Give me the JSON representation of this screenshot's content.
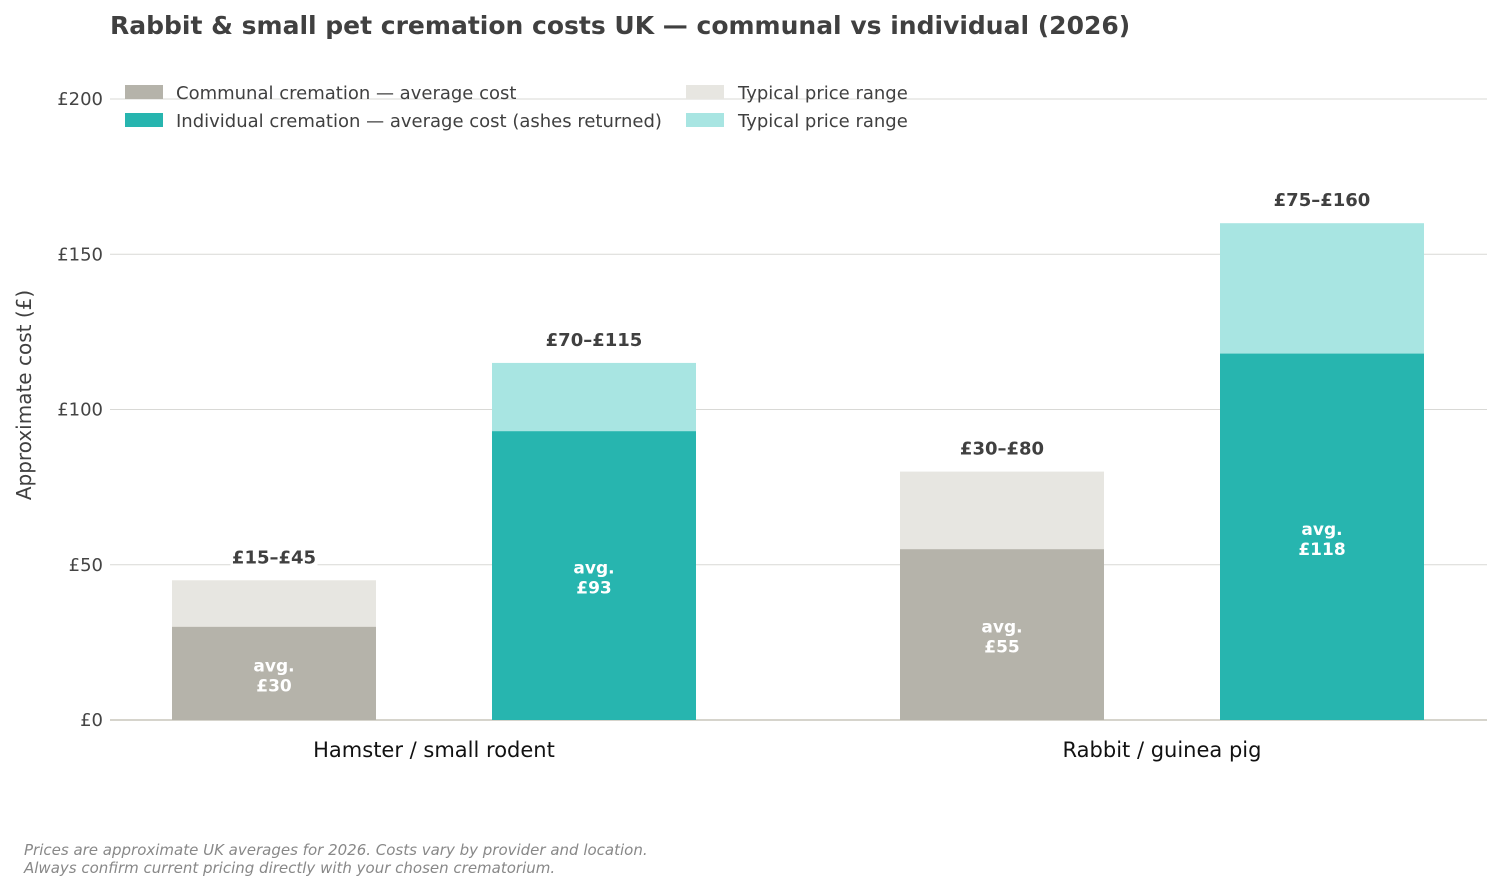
{
  "chart_data": {
    "type": "bar",
    "title": "Rabbit & small pet cremation costs UK — communal vs individual (2026)",
    "ylabel": "Approximate cost (£)",
    "xlabel": "",
    "ylim": [
      0,
      200
    ],
    "yticks": [
      0,
      50,
      100,
      150,
      200
    ],
    "ytick_labels": [
      "£0",
      "£50",
      "£100",
      "£150",
      "£200"
    ],
    "grid": "horizontal",
    "legend_position": "top-left",
    "categories": [
      "Hamster / small rodent",
      "Rabbit / guinea pig"
    ],
    "series": [
      {
        "name": "Communal cremation — average cost",
        "range_name": "Typical price range",
        "color": "#b5b3aa",
        "range_color": "#e7e6e1",
        "values": [
          30,
          55
        ],
        "range_low": [
          15,
          30
        ],
        "range_high": [
          45,
          80
        ],
        "range_labels": [
          "£15–£45",
          "£30–£80"
        ],
        "avg_labels": [
          "avg.\n£30",
          "avg.\n£55"
        ]
      },
      {
        "name": "Individual cremation — average cost (ashes returned)",
        "range_name": "Typical price range",
        "color": "#27b5af",
        "range_color": "#a8e5e2",
        "values": [
          93,
          118
        ],
        "range_low": [
          70,
          75
        ],
        "range_high": [
          115,
          160
        ],
        "range_labels": [
          "£70–£115",
          "£75–£160"
        ],
        "avg_labels": [
          "avg.\n£93",
          "avg.\n£118"
        ]
      }
    ],
    "footnote": [
      "Prices are approximate UK averages for 2026. Costs vary by provider and location.",
      "Always confirm current pricing directly with your chosen crematorium."
    ]
  }
}
